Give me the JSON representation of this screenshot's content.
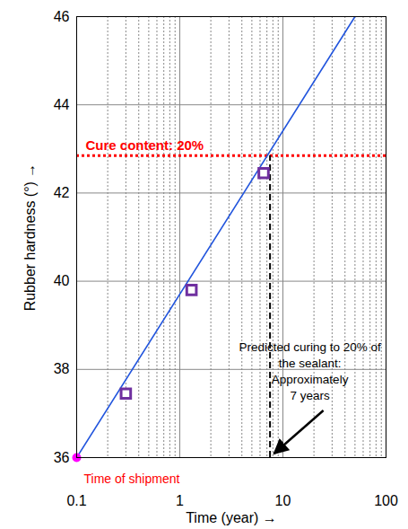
{
  "chart_data": {
    "type": "scatter",
    "x_label": "Time (year)",
    "y_label": "Rubber hardness (°)",
    "log": "x",
    "grid": true,
    "xlim": [
      0.1,
      100
    ],
    "ylim": [
      36,
      46
    ],
    "xticks": [
      0.1,
      1,
      10,
      100
    ],
    "yticks": [
      36,
      38,
      40,
      42,
      44,
      46
    ],
    "series": [
      {
        "type": "line",
        "x": [
          0.1,
          50
        ],
        "values": [
          36,
          46
        ],
        "color": "#2255dd",
        "line_style": "solid"
      },
      {
        "type": "scatter",
        "x": [
          0.3,
          1.3,
          6.5
        ],
        "values": [
          37.45,
          39.8,
          42.45
        ],
        "color": "#7030a0",
        "marker": "square"
      },
      {
        "type": "scatter",
        "x": [
          0.1
        ],
        "values": [
          36
        ],
        "color": "#ff00ff",
        "marker": "circle"
      }
    ],
    "annotations": [
      {
        "text": "Cure content: 20%",
        "y": 42.85,
        "color": "#ff0000",
        "line_style": "dotted"
      },
      {
        "lines": [
          "Predicted curing to 20% of",
          "the sealant:",
          "Approximately",
          "7 years"
        ],
        "x": 7.5,
        "y_from": 36,
        "y_to": 42.85,
        "color": "#000000",
        "line_style": "dashed"
      },
      {
        "text": "Time of shipment",
        "x": 0.1,
        "y": 36,
        "color": "#ff0000"
      }
    ]
  }
}
